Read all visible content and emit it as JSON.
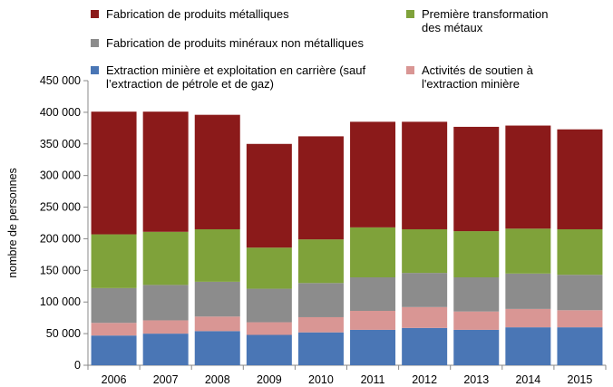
{
  "chart_data": {
    "type": "stacked_bar",
    "categories": [
      "2006",
      "2007",
      "2008",
      "2009",
      "2010",
      "2011",
      "2012",
      "2013",
      "2014",
      "2015"
    ],
    "series": [
      {
        "name": "Extraction minière et exploitation en carrière (sauf l’extraction de pétrole et de gaz)",
        "color": "#4a76b5",
        "values": [
          47000,
          50000,
          54000,
          48000,
          52000,
          56000,
          59000,
          56000,
          60000,
          60000
        ]
      },
      {
        "name": "Activités de soutien à l'extraction minière",
        "color": "#d99694",
        "values": [
          20000,
          21000,
          23000,
          20000,
          24000,
          30000,
          33000,
          29000,
          29000,
          27000
        ]
      },
      {
        "name": "Fabrication de produits minéraux non métalliques",
        "color": "#8c8c8c",
        "values": [
          55000,
          56000,
          55000,
          53000,
          54000,
          53000,
          54000,
          54000,
          56000,
          56000
        ]
      },
      {
        "name": "Première transformation des métaux",
        "color": "#7fa23a",
        "values": [
          85000,
          84000,
          83000,
          65000,
          69000,
          79000,
          69000,
          73000,
          71000,
          72000
        ]
      },
      {
        "name": "Fabrication de produits métalliques",
        "color": "#8b1a1a",
        "values": [
          194000,
          190000,
          181000,
          164000,
          163000,
          167000,
          170000,
          165000,
          163000,
          158000
        ]
      }
    ],
    "y_label": "nombre de personnes",
    "ylim": [
      0,
      450000
    ],
    "yticks": [
      0,
      {
        "value": 50000,
        "label": "50 000"
      },
      {
        "value": 100000,
        "label": "100 000"
      },
      {
        "value": 150000,
        "label": "150 000"
      },
      {
        "value": 200000,
        "label": "200 000"
      },
      {
        "value": 250000,
        "label": "250 000"
      },
      {
        "value": 300000,
        "label": "300 000"
      },
      {
        "value": 350000,
        "label": "350 000"
      },
      {
        "value": 400000,
        "label": "400 000"
      },
      {
        "value": 450000,
        "label": "450 000"
      }
    ],
    "grid": false
  }
}
